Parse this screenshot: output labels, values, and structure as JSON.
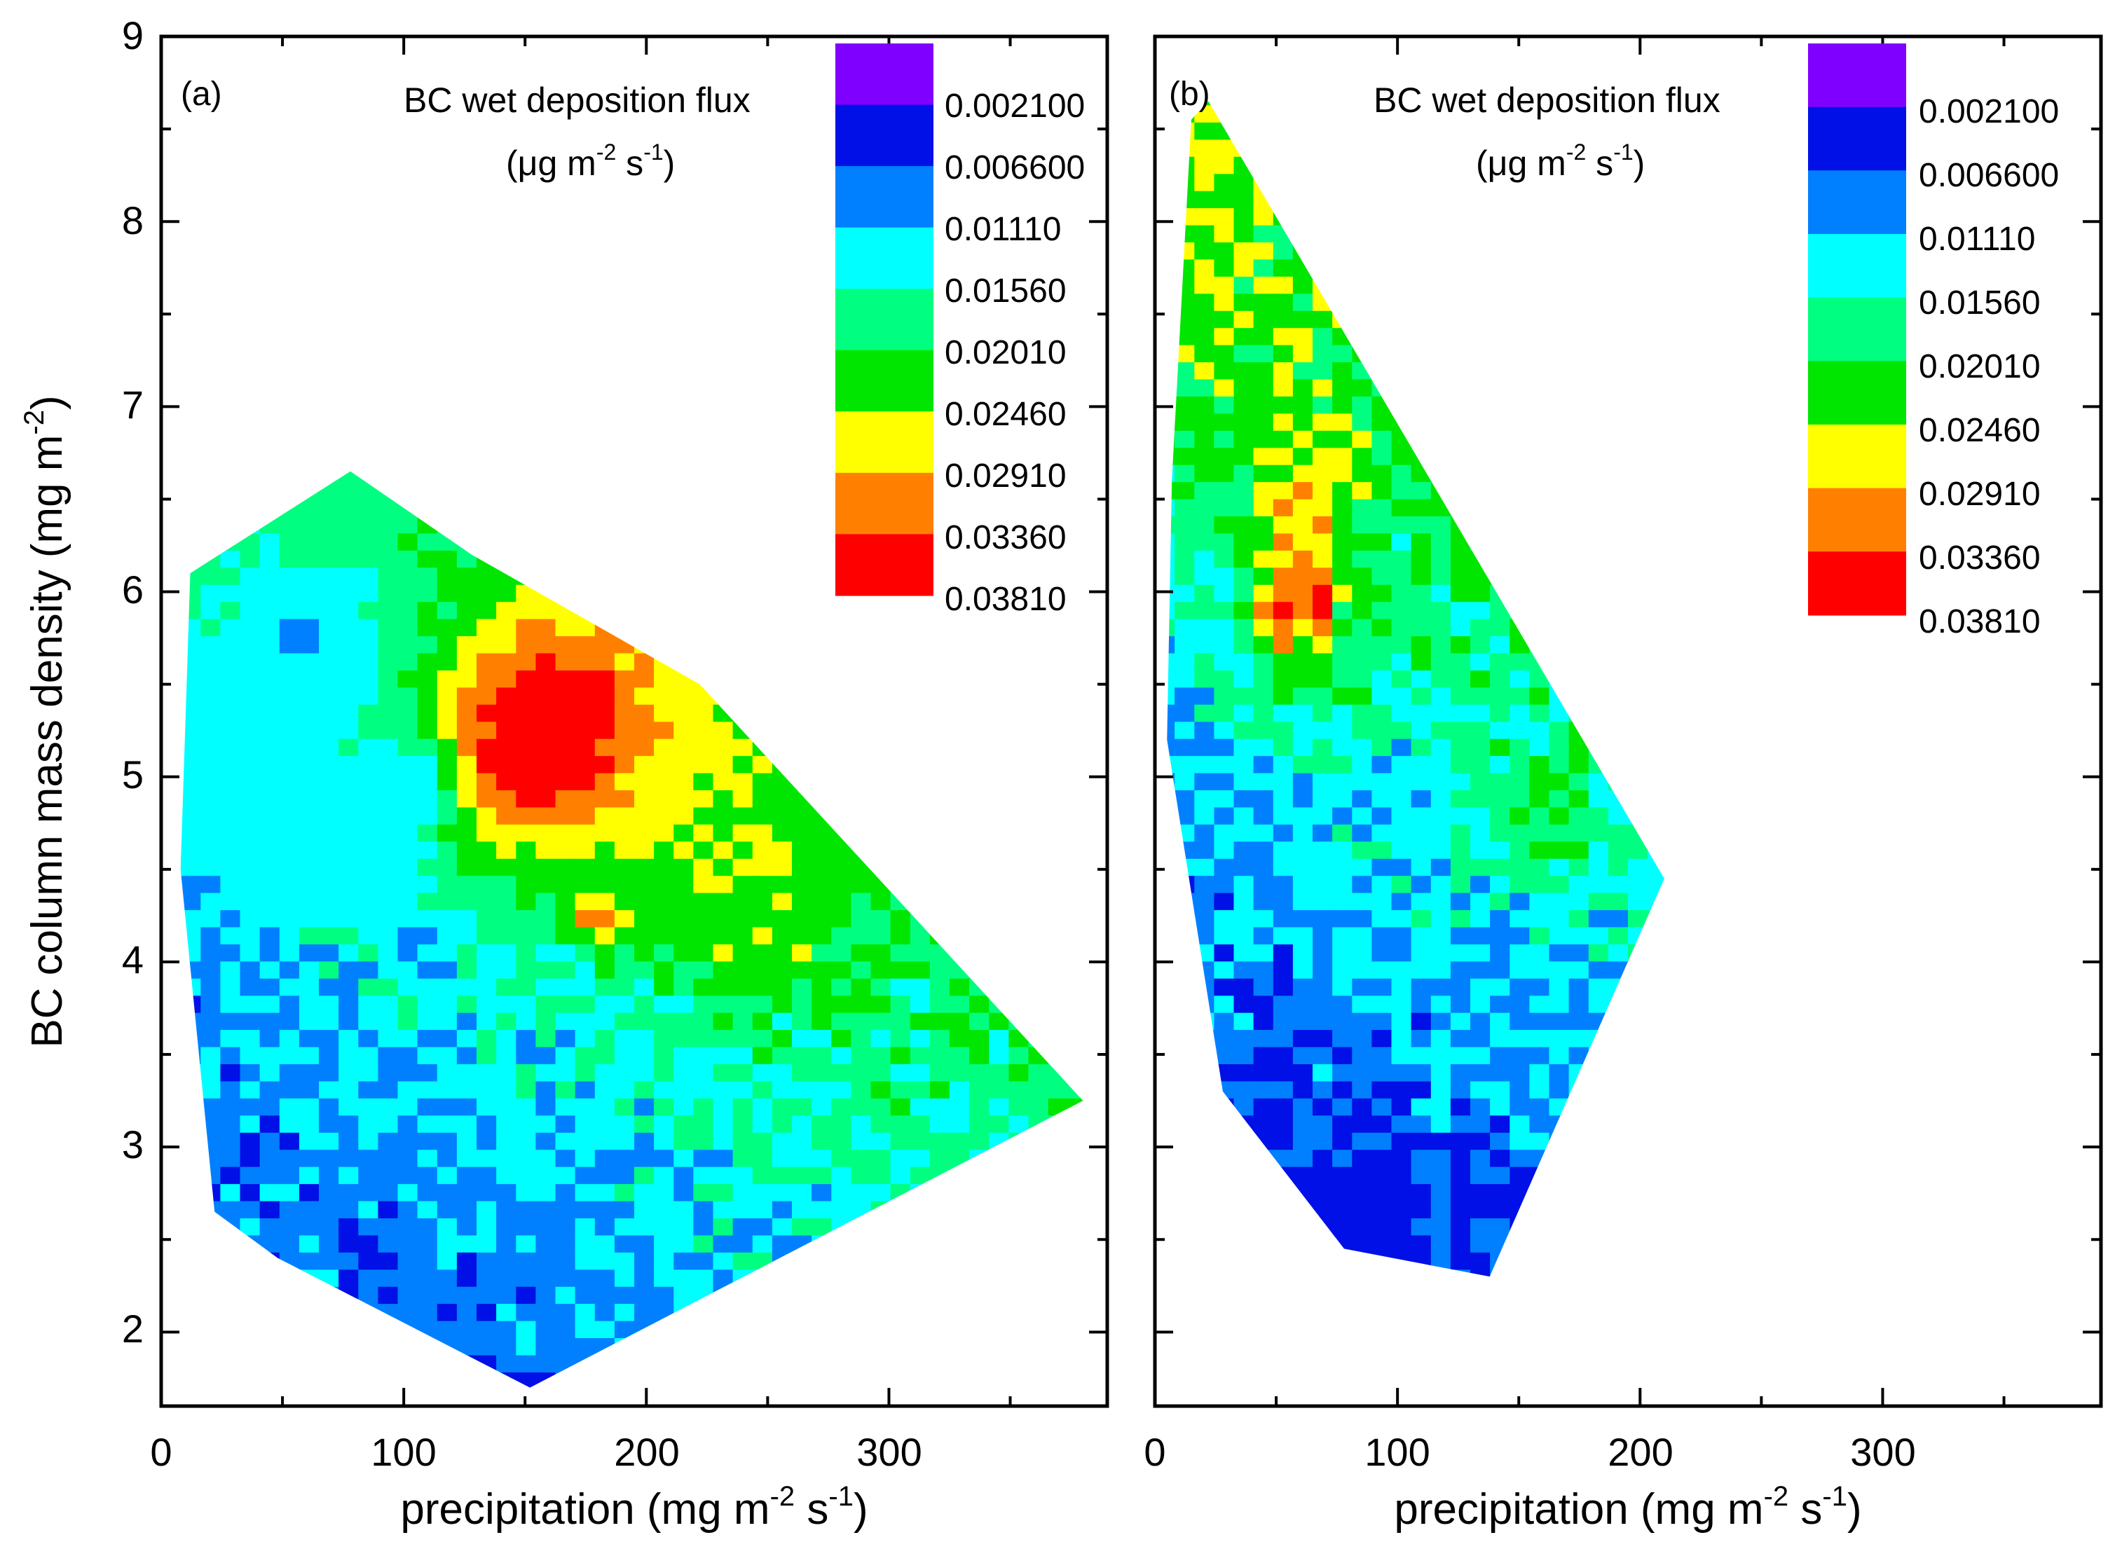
{
  "chart_data": [
    {
      "type": "heatmap",
      "panel_label": "(a)",
      "xlabel": "precipitation (mg m-2 s-1)",
      "ylabel": "BC column mass density (mg m-2)",
      "xlim": [
        0,
        390
      ],
      "ylim": [
        1.6,
        9
      ],
      "x_ticks": [
        "0",
        "100",
        "200",
        "300"
      ],
      "y_ticks": [
        "2",
        "3",
        "4",
        "5",
        "6",
        "7",
        "8",
        "9"
      ],
      "legend_title": "BC wet deposition flux",
      "legend_units": "(μg m-2 s-1)",
      "levels": [
        "0.002100",
        "0.006600",
        "0.01110",
        "0.01560",
        "0.02010",
        "0.02460",
        "0.02910",
        "0.03360",
        "0.03810"
      ],
      "hull": [
        [
          12,
          6.1
        ],
        [
          78,
          6.65
        ],
        [
          128,
          6.2
        ],
        [
          222,
          5.5
        ],
        [
          380,
          3.25
        ],
        [
          152,
          1.7
        ],
        [
          48,
          2.4
        ],
        [
          22,
          2.65
        ],
        [
          8,
          4.5
        ]
      ],
      "field_model": "background increases with precipitation and BC density; hot spot near precip 150, density 5.15"
    },
    {
      "type": "heatmap",
      "panel_label": "(b)",
      "xlabel": "precipitation (mg m-2 s-1)",
      "ylabel": "",
      "xlim": [
        0,
        390
      ],
      "ylim": [
        1.6,
        9
      ],
      "x_ticks": [
        "0",
        "100",
        "200",
        "300"
      ],
      "y_ticks": [],
      "legend_title": "BC wet deposition flux",
      "legend_units": "(μg m-2 s-1)",
      "levels": [
        "0.002100",
        "0.006600",
        "0.01110",
        "0.01560",
        "0.02010",
        "0.02460",
        "0.02910",
        "0.03360",
        "0.03810"
      ],
      "hull": [
        [
          15,
          8.55
        ],
        [
          22,
          8.65
        ],
        [
          210,
          4.45
        ],
        [
          138,
          2.3
        ],
        [
          78,
          2.45
        ],
        [
          28,
          3.3
        ],
        [
          5,
          5.2
        ],
        [
          7,
          6.6
        ]
      ],
      "field_model": "narrow wedge; hot spots near precip 50-68, density 5.8-6.0"
    }
  ],
  "colors": {
    "levels": [
      "#8000ff",
      "#0010e6",
      "#0080ff",
      "#00ffff",
      "#00ff80",
      "#00e600",
      "#ffff00",
      "#ff8000",
      "#ff0000"
    ]
  }
}
